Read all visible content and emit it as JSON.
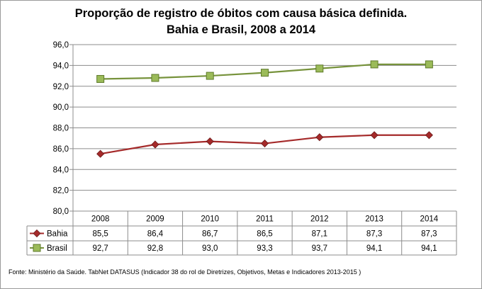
{
  "chart_data": {
    "type": "line",
    "title": "Proporção de registro de óbitos com causa básica definida.",
    "subtitle": "Bahia e Brasil, 2008 a 2014",
    "categories": [
      "2008",
      "2009",
      "2010",
      "2011",
      "2012",
      "2013",
      "2014"
    ],
    "ylim": [
      80.0,
      96.0
    ],
    "yticks": [
      "96,0",
      "94,0",
      "92,0",
      "90,0",
      "88,0",
      "86,0",
      "84,0",
      "82,0",
      "80,0"
    ],
    "series": [
      {
        "name": "Bahia",
        "values": [
          85.5,
          86.4,
          86.7,
          86.5,
          87.1,
          87.3,
          87.3
        ],
        "labels": [
          "85,5",
          "86,4",
          "86,7",
          "86,5",
          "87,1",
          "87,3",
          "87,3"
        ],
        "color": "#a52a2a",
        "marker": "diamond"
      },
      {
        "name": "Brasil",
        "values": [
          92.7,
          92.8,
          93.0,
          93.3,
          93.7,
          94.1,
          94.1
        ],
        "labels": [
          "92,7",
          "92,8",
          "93,0",
          "93,3",
          "93,7",
          "94,1",
          "94,1"
        ],
        "color": "#77933c",
        "marker": "square"
      }
    ],
    "data_table": true,
    "source": "Fonte: Ministério da Saúde. TabNet DATASUS (Indicador 38 do rol de Diretrizes, Objetivos, Metas e Indicadores 2013-2015 )"
  }
}
